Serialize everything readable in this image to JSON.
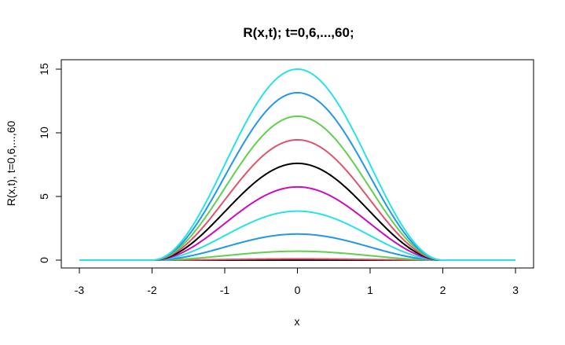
{
  "chart_data": {
    "type": "line",
    "title": "R(x,t); t=0,6,...,60;",
    "xlabel": "x",
    "ylabel": "R(x,t), t=0,6,...,60",
    "xlim": [
      -3,
      3
    ],
    "ylim": [
      0,
      15
    ],
    "x_ticks": [
      "-3",
      "-2",
      "-1",
      "0",
      "1",
      "2",
      "3"
    ],
    "y_ticks": [
      "0",
      "5",
      "10",
      "15"
    ],
    "grid": false,
    "legend": "none",
    "support": [
      -2,
      2
    ],
    "series": [
      {
        "color": "#000000",
        "peak": 0.0
      },
      {
        "color": "#DF536B",
        "peak": 0.1
      },
      {
        "color": "#61D04F",
        "peak": 0.7
      },
      {
        "color": "#2297E6",
        "peak": 2.05
      },
      {
        "color": "#28E2E5",
        "peak": 3.85
      },
      {
        "color": "#CD0BBC",
        "peak": 5.75
      },
      {
        "color": "#000000",
        "peak": 7.6
      },
      {
        "color": "#DF536B",
        "peak": 9.45
      },
      {
        "color": "#61D04F",
        "peak": 11.3
      },
      {
        "color": "#2297E6",
        "peak": 13.15
      },
      {
        "color": "#28E2E5",
        "peak": 15.0
      }
    ]
  }
}
